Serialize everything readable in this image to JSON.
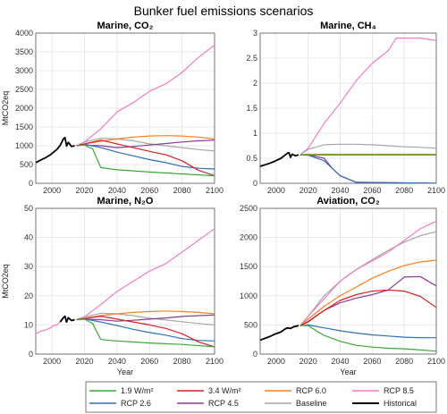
{
  "figure": {
    "title": "Bunker fuel emissions scenarios"
  },
  "legend": {
    "items": [
      {
        "label": "1.9 W/m²",
        "color": "#3aaa35"
      },
      {
        "label": "3.4 W/m²",
        "color": "#d62027"
      },
      {
        "label": "RCP 6.0",
        "color": "#f58220"
      },
      {
        "label": "RCP 8.5",
        "color": "#f27cc3"
      },
      {
        "label": "RCP 2.6",
        "color": "#2e6eb5"
      },
      {
        "label": "RCP 4.5",
        "color": "#8b3a96"
      },
      {
        "label": "Baseline",
        "color": "#a6a6a6"
      },
      {
        "label": "Historical",
        "color": "#000000"
      }
    ]
  },
  "chart_data": [
    {
      "type": "line",
      "title": "Marine, CO₂",
      "xlabel": "",
      "ylabel": "MtCO2eq",
      "xlim": [
        1990,
        2100
      ],
      "ylim": [
        0,
        4000
      ],
      "xticks": [
        2000,
        2020,
        2040,
        2060,
        2080,
        2100
      ],
      "yticks": [
        0,
        500,
        1000,
        1500,
        2000,
        2500,
        3000,
        3500,
        4000
      ],
      "series": [
        {
          "name": "Historical",
          "color": "#000000",
          "x": [
            1990,
            1993,
            1996,
            1999,
            2001,
            2003,
            2005,
            2007,
            2008,
            2009,
            2010,
            2012,
            2014
          ],
          "y": [
            550,
            620,
            680,
            760,
            830,
            900,
            1010,
            1180,
            1220,
            990,
            1090,
            980,
            1000
          ]
        },
        {
          "name": "1.9 W/m²",
          "color": "#3aaa35",
          "x": [
            2015,
            2020,
            2025,
            2030,
            2040,
            2060,
            2080,
            2100
          ],
          "y": [
            1000,
            1020,
            920,
            420,
            360,
            300,
            250,
            200
          ]
        },
        {
          "name": "3.4 W/m²",
          "color": "#d62027",
          "x": [
            2015,
            2020,
            2030,
            2040,
            2050,
            2060,
            2070,
            2080,
            2090,
            2100
          ],
          "y": [
            1000,
            1050,
            1150,
            1050,
            950,
            850,
            760,
            600,
            350,
            200
          ]
        },
        {
          "name": "RCP 6.0",
          "color": "#f58220",
          "x": [
            2015,
            2020,
            2030,
            2040,
            2050,
            2060,
            2070,
            2080,
            2090,
            2100
          ],
          "y": [
            1000,
            1050,
            1120,
            1180,
            1230,
            1260,
            1270,
            1260,
            1230,
            1180
          ]
        },
        {
          "name": "RCP 8.5",
          "color": "#f27cc3",
          "x": [
            2015,
            2020,
            2030,
            2040,
            2050,
            2060,
            2070,
            2080,
            2090,
            2100
          ],
          "y": [
            1000,
            1100,
            1450,
            1900,
            2150,
            2450,
            2650,
            2950,
            3350,
            3680
          ]
        },
        {
          "name": "RCP 2.6",
          "color": "#2e6eb5",
          "x": [
            2015,
            2020,
            2030,
            2040,
            2050,
            2060,
            2070,
            2080,
            2090,
            2100
          ],
          "y": [
            1000,
            1040,
            950,
            830,
            730,
            630,
            550,
            450,
            400,
            380
          ]
        },
        {
          "name": "RCP 4.5",
          "color": "#8b3a96",
          "x": [
            2015,
            2020,
            2030,
            2040,
            2050,
            2060,
            2070,
            2080,
            2090,
            2100
          ],
          "y": [
            1000,
            1020,
            1000,
            950,
            980,
            1020,
            1060,
            1100,
            1130,
            1150
          ]
        },
        {
          "name": "Baseline",
          "color": "#a6a6a6",
          "x": [
            2015,
            2020,
            2030,
            2040,
            2050,
            2060,
            2070,
            2080,
            2090,
            2100
          ],
          "y": [
            1000,
            1100,
            1200,
            1180,
            1130,
            1050,
            1000,
            950,
            900,
            860
          ]
        }
      ]
    },
    {
      "type": "line",
      "title": "Marine, CH₄",
      "xlabel": "",
      "ylabel": "",
      "xlim": [
        1990,
        2100
      ],
      "ylim": [
        0,
        3
      ],
      "xticks": [
        2000,
        2020,
        2040,
        2060,
        2080,
        2100
      ],
      "yticks": [
        0,
        0.5,
        1,
        1.5,
        2,
        2.5,
        3
      ],
      "series": [
        {
          "name": "Historical",
          "color": "#000000",
          "x": [
            1990,
            1993,
            1996,
            1999,
            2001,
            2003,
            2005,
            2007,
            2008,
            2009,
            2010,
            2012,
            2014
          ],
          "y": [
            0.34,
            0.37,
            0.4,
            0.44,
            0.47,
            0.5,
            0.55,
            0.6,
            0.61,
            0.52,
            0.58,
            0.55,
            0.57
          ]
        },
        {
          "name": "1.9 W/m²",
          "color": "#3aaa35",
          "x": [
            2015,
            2100
          ],
          "y": [
            0.57,
            0.57
          ]
        },
        {
          "name": "3.4 W/m²",
          "color": "#d62027",
          "x": [
            2015,
            2100
          ],
          "y": [
            0.57,
            0.57
          ]
        },
        {
          "name": "RCP 6.0",
          "color": "#f58220",
          "x": [
            2015,
            2020,
            2100
          ],
          "y": [
            0.57,
            0.58,
            0.58
          ]
        },
        {
          "name": "RCP 8.5",
          "color": "#f27cc3",
          "x": [
            2015,
            2020,
            2030,
            2040,
            2050,
            2060,
            2070,
            2075,
            2080,
            2090,
            2100
          ],
          "y": [
            0.57,
            0.7,
            1.2,
            1.6,
            2.05,
            2.4,
            2.65,
            2.9,
            2.9,
            2.9,
            2.85
          ]
        },
        {
          "name": "RCP 2.6",
          "color": "#2e6eb5",
          "x": [
            2015,
            2020,
            2030,
            2040,
            2050,
            2100
          ],
          "y": [
            0.57,
            0.56,
            0.45,
            0.15,
            0.02,
            0.0
          ]
        },
        {
          "name": "RCP 4.5",
          "color": "#8b3a96",
          "x": [
            2015,
            2020,
            2030,
            2035,
            2040,
            2050,
            2100
          ],
          "y": [
            0.57,
            0.57,
            0.5,
            0.3,
            0.15,
            0.02,
            0.0
          ]
        },
        {
          "name": "Baseline",
          "color": "#a6a6a6",
          "x": [
            2015,
            2020,
            2030,
            2040,
            2050,
            2060,
            2070,
            2080,
            2090,
            2100
          ],
          "y": [
            0.57,
            0.68,
            0.77,
            0.78,
            0.78,
            0.77,
            0.75,
            0.73,
            0.72,
            0.7
          ]
        }
      ]
    },
    {
      "type": "line",
      "title": "Marine, N₂O",
      "xlabel": "Year",
      "ylabel": "MtCO2eq",
      "xlim": [
        1990,
        2100
      ],
      "ylim": [
        0,
        50
      ],
      "xticks": [
        2000,
        2020,
        2040,
        2060,
        2080,
        2100
      ],
      "yticks": [
        0,
        10,
        20,
        30,
        40,
        50
      ],
      "series": [
        {
          "name": "Historical",
          "color": "#000000",
          "x": [
            2005,
            2007,
            2008,
            2009,
            2010,
            2012,
            2014
          ],
          "y": [
            11.0,
            12.5,
            13.0,
            11.0,
            12.5,
            11.5,
            11.8
          ]
        },
        {
          "name": "1.9 W/m²",
          "color": "#3aaa35",
          "x": [
            2015,
            2020,
            2025,
            2030,
            2040,
            2060,
            2080,
            2100
          ],
          "y": [
            11.8,
            12.0,
            10.5,
            5.0,
            4.5,
            3.8,
            3.3,
            2.5
          ]
        },
        {
          "name": "3.4 W/m²",
          "color": "#d62027",
          "x": [
            2015,
            2020,
            2030,
            2040,
            2050,
            2060,
            2070,
            2080,
            2090,
            2100
          ],
          "y": [
            11.8,
            12.2,
            13.0,
            12.0,
            11.0,
            10.0,
            8.8,
            7.0,
            4.2,
            2.5
          ]
        },
        {
          "name": "RCP 6.0",
          "color": "#f58220",
          "x": [
            2015,
            2020,
            2030,
            2040,
            2050,
            2060,
            2070,
            2080,
            2090,
            2100
          ],
          "y": [
            11.8,
            12.3,
            13.2,
            13.8,
            14.3,
            14.6,
            14.8,
            14.6,
            14.3,
            13.8
          ]
        },
        {
          "name": "RCP 8.5",
          "color": "#f27cc3",
          "x": [
            2015,
            2020,
            2030,
            2040,
            2050,
            2060,
            2070,
            2080,
            2090,
            2100
          ],
          "y": [
            11.8,
            12.8,
            17.0,
            21.5,
            25.0,
            28.5,
            31.0,
            35.0,
            39.0,
            43.0
          ]
        },
        {
          "name": "RCP 2.6",
          "color": "#2e6eb5",
          "x": [
            2015,
            2020,
            2030,
            2040,
            2050,
            2060,
            2070,
            2080,
            2090,
            2100
          ],
          "y": [
            11.8,
            12.1,
            11.0,
            9.8,
            8.5,
            7.4,
            6.5,
            5.3,
            4.7,
            4.5
          ]
        },
        {
          "name": "RCP 4.5",
          "color": "#8b3a96",
          "x": [
            2015,
            2020,
            2030,
            2040,
            2050,
            2060,
            2070,
            2080,
            2090,
            2100
          ],
          "y": [
            11.8,
            12.0,
            11.8,
            11.3,
            11.6,
            12.0,
            12.4,
            12.9,
            13.2,
            13.4
          ]
        },
        {
          "name": "Baseline",
          "color": "#a6a6a6",
          "x": [
            2015,
            2020,
            2030,
            2040,
            2050,
            2060,
            2070,
            2080,
            2090,
            2100
          ],
          "y": [
            11.8,
            12.8,
            14.0,
            13.8,
            13.2,
            12.3,
            11.7,
            11.1,
            10.5,
            10.0
          ]
        },
        {
          "name": "",
          "color": "#f27cc3",
          "x": [
            1990,
            1993,
            1996,
            1999,
            2001,
            2003,
            2005
          ],
          "y": [
            7.0,
            7.8,
            8.3,
            9.0,
            9.8,
            10.0,
            11.0
          ]
        }
      ]
    },
    {
      "type": "line",
      "title": "Aviation, CO₂",
      "xlabel": "Year",
      "ylabel": "",
      "xlim": [
        1990,
        2100
      ],
      "ylim": [
        0,
        2500
      ],
      "xticks": [
        2000,
        2020,
        2040,
        2060,
        2080,
        2100
      ],
      "yticks": [
        0,
        500,
        1000,
        1500,
        2000,
        2500
      ],
      "series": [
        {
          "name": "Historical",
          "color": "#000000",
          "x": [
            1990,
            1993,
            1996,
            1999,
            2001,
            2003,
            2005,
            2007,
            2009,
            2011,
            2014
          ],
          "y": [
            240,
            270,
            300,
            340,
            360,
            380,
            420,
            450,
            440,
            470,
            490
          ]
        },
        {
          "name": "1.9 W/m²",
          "color": "#3aaa35",
          "x": [
            2015,
            2020,
            2025,
            2030,
            2040,
            2050,
            2060,
            2070,
            2080,
            2090,
            2100
          ],
          "y": [
            490,
            490,
            400,
            320,
            220,
            150,
            120,
            100,
            90,
            70,
            50
          ]
        },
        {
          "name": "3.4 W/m²",
          "color": "#d62027",
          "x": [
            2015,
            2020,
            2030,
            2040,
            2050,
            2060,
            2070,
            2080,
            2090,
            2100
          ],
          "y": [
            490,
            550,
            750,
            920,
            1020,
            1080,
            1100,
            1080,
            990,
            800
          ]
        },
        {
          "name": "RCP 6.0",
          "color": "#f58220",
          "x": [
            2015,
            2020,
            2030,
            2040,
            2050,
            2060,
            2070,
            2080,
            2090,
            2100
          ],
          "y": [
            490,
            600,
            820,
            1000,
            1150,
            1300,
            1420,
            1520,
            1580,
            1610
          ]
        },
        {
          "name": "RCP 8.5",
          "color": "#f27cc3",
          "x": [
            2015,
            2020,
            2030,
            2040,
            2050,
            2060,
            2070,
            2080,
            2090,
            2100
          ],
          "y": [
            490,
            650,
            950,
            1250,
            1450,
            1600,
            1750,
            1950,
            2150,
            2280
          ]
        },
        {
          "name": "RCP 2.6",
          "color": "#2e6eb5",
          "x": [
            2015,
            2020,
            2030,
            2040,
            2050,
            2060,
            2070,
            2080,
            2090,
            2100
          ],
          "y": [
            490,
            500,
            450,
            400,
            360,
            330,
            310,
            290,
            280,
            280
          ]
        },
        {
          "name": "RCP 4.5",
          "color": "#8b3a96",
          "x": [
            2015,
            2020,
            2030,
            2040,
            2050,
            2060,
            2070,
            2080,
            2090,
            2100
          ],
          "y": [
            490,
            560,
            750,
            880,
            960,
            1020,
            1100,
            1320,
            1330,
            1170
          ]
        },
        {
          "name": "Baseline",
          "color": "#a6a6a6",
          "x": [
            2015,
            2020,
            2030,
            2040,
            2050,
            2060,
            2070,
            2080,
            2090,
            2100
          ],
          "y": [
            490,
            650,
            1000,
            1250,
            1450,
            1620,
            1780,
            1920,
            2030,
            2100
          ]
        }
      ]
    }
  ]
}
